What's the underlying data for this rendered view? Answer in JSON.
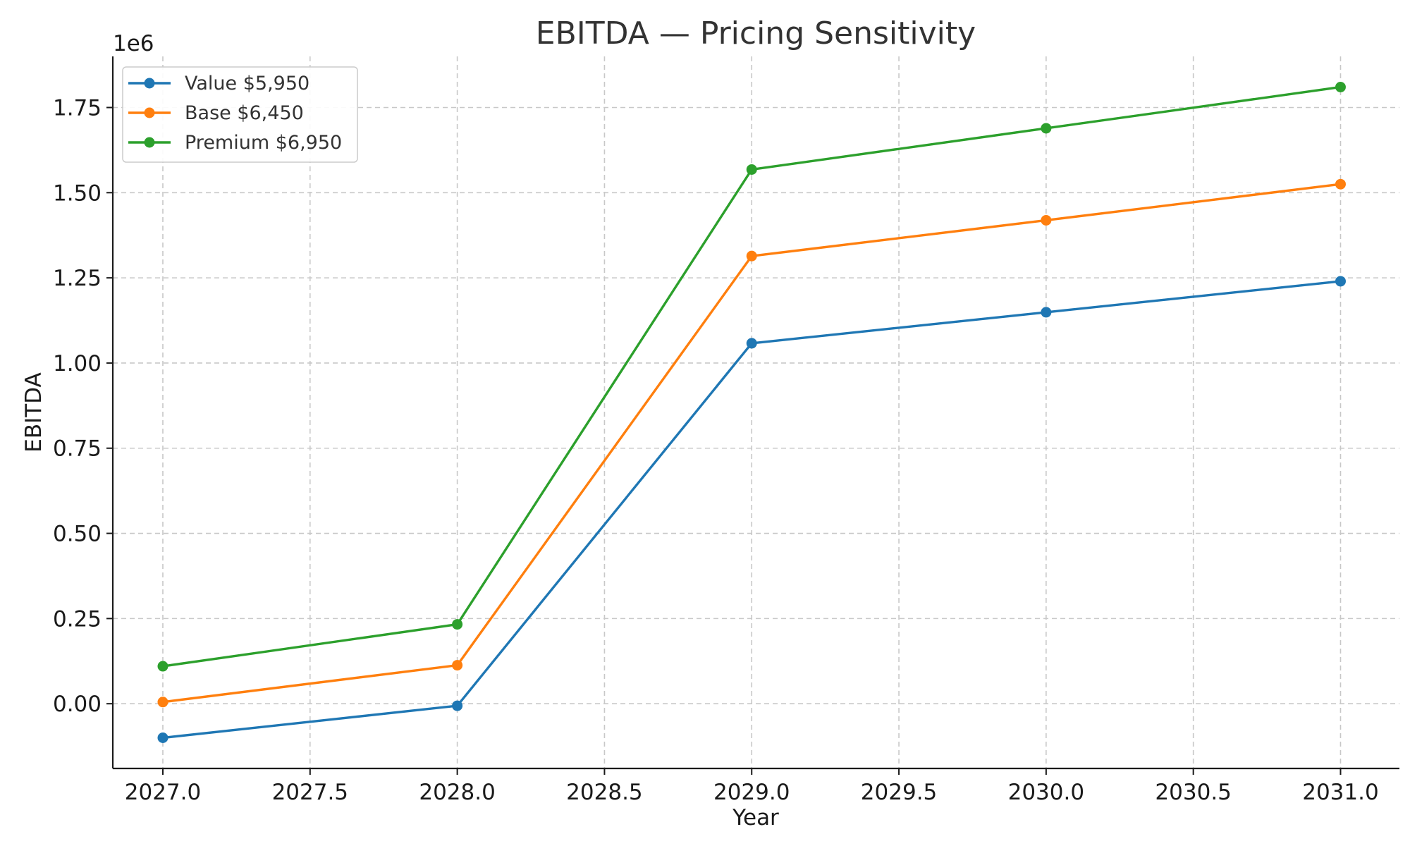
{
  "chart_data": {
    "type": "line",
    "title": "EBITDA — Pricing Sensitivity",
    "xlabel": "Year",
    "ylabel": "EBITDA",
    "y_offset_label": "1e6",
    "xlim": [
      2026.83,
      2031.2
    ],
    "ylim": [
      -0.19,
      1.9
    ],
    "x_ticks": [
      "2027.0",
      "2027.5",
      "2028.0",
      "2028.5",
      "2029.0",
      "2029.5",
      "2030.0",
      "2030.5",
      "2031.0"
    ],
    "y_ticks": [
      "0.00",
      "0.25",
      "0.50",
      "0.75",
      "1.00",
      "1.25",
      "1.50",
      "1.75"
    ],
    "grid": true,
    "legend_position": "upper-left",
    "x": [
      2027,
      2028,
      2029,
      2030,
      2031
    ],
    "series": [
      {
        "name": "Value $5,950",
        "color": "#1f77b4",
        "values": [
          -0.1,
          -0.006,
          1.058,
          1.149,
          1.24
        ]
      },
      {
        "name": "Base $6,450",
        "color": "#ff7f0e",
        "values": [
          0.005,
          0.113,
          1.314,
          1.419,
          1.525
        ]
      },
      {
        "name": "Premium $6,950",
        "color": "#2ca02c",
        "values": [
          0.11,
          0.233,
          1.568,
          1.689,
          1.81
        ]
      }
    ]
  }
}
